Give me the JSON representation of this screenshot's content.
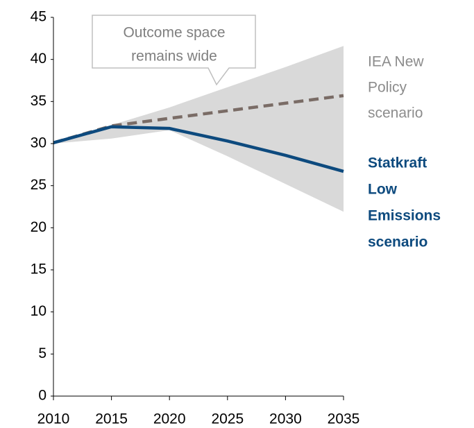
{
  "chart_data": {
    "type": "line",
    "x": [
      2010,
      2015,
      2020,
      2025,
      2030,
      2035
    ],
    "xlim": [
      2010,
      2035
    ],
    "xticks": [
      2010,
      2015,
      2020,
      2025,
      2030,
      2035
    ],
    "ylim": [
      0,
      45
    ],
    "yticks": [
      0,
      5,
      10,
      15,
      20,
      25,
      30,
      35,
      40,
      45
    ],
    "band": {
      "color": "#d9d9d9",
      "upper": [
        30.1,
        32.2,
        34.3,
        36.7,
        39.1,
        41.6
      ],
      "lower": [
        30.0,
        30.6,
        31.6,
        28.5,
        25.2,
        21.9
      ]
    },
    "series": [
      {
        "name": [
          "IEA New",
          "Policy",
          "scenario"
        ],
        "color": "#7a6c66",
        "dashed": true,
        "label_color": "#8c8c8c",
        "bold": false,
        "values": [
          30.1,
          32.1,
          33.0,
          33.9,
          34.8,
          35.7
        ]
      },
      {
        "name": [
          "Statkraft",
          "Low",
          "Emissions",
          "scenario"
        ],
        "color": "#0d4a7e",
        "dashed": false,
        "label_color": "#0d4a7e",
        "bold": true,
        "values": [
          30.1,
          32.0,
          31.8,
          30.3,
          28.6,
          26.7
        ]
      }
    ],
    "annotation": [
      "Outcome space",
      "remains wide"
    ]
  }
}
